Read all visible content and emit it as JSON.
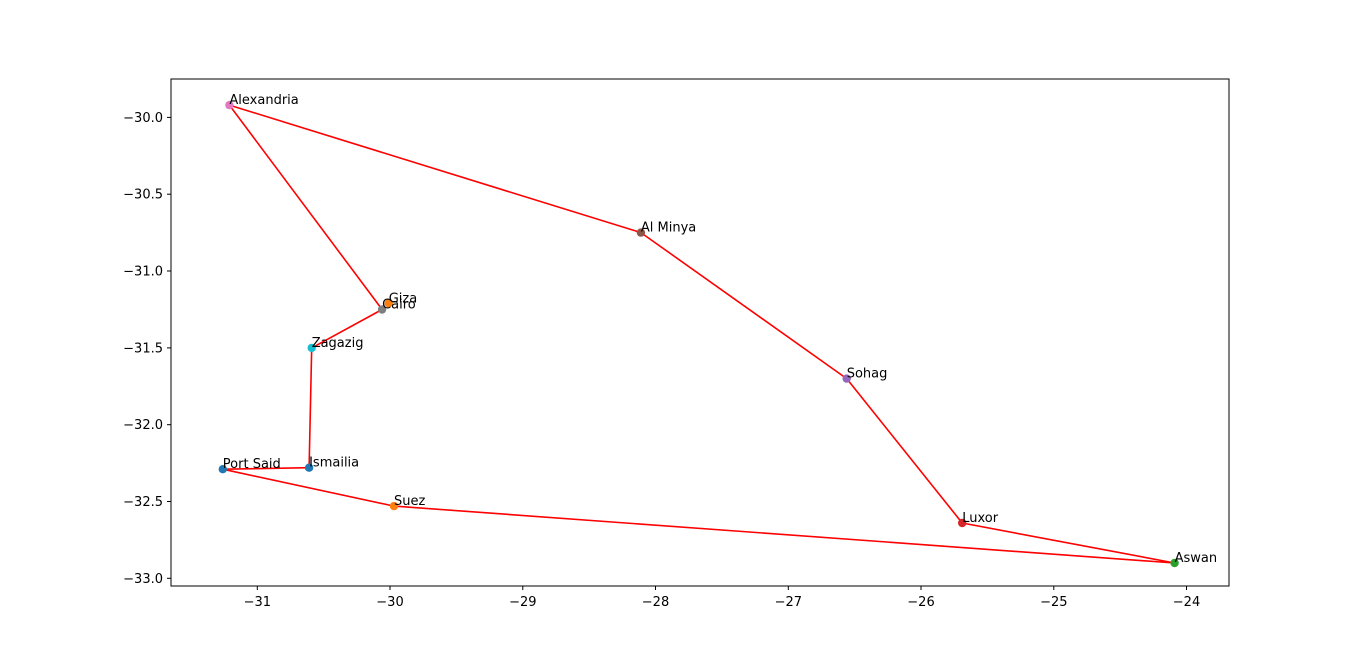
{
  "chart_data": {
    "type": "scatter",
    "title": "",
    "xlabel": "",
    "ylabel": "",
    "xlim": [
      -31.65,
      -23.68
    ],
    "ylim": [
      -33.05,
      -29.75
    ],
    "xticks": [
      -31,
      -30,
      -29,
      -28,
      -27,
      -26,
      -25,
      -24
    ],
    "yticks": [
      -30.0,
      -30.5,
      -31.0,
      -31.5,
      -32.0,
      -32.5,
      -33.0
    ],
    "xtick_labels": [
      "−31",
      "−30",
      "−29",
      "−28",
      "−27",
      "−26",
      "−25",
      "−24"
    ],
    "ytick_labels": [
      "−30.0",
      "−30.5",
      "−31.0",
      "−31.5",
      "−32.0",
      "−32.5",
      "−33.0"
    ],
    "grid": false,
    "route_color": "#ff0000",
    "points": [
      {
        "label": "Cairo",
        "x": -30.06,
        "y": -31.25,
        "color": "#7f7f7f"
      },
      {
        "label": "Alexandria",
        "x": -31.21,
        "y": -29.92,
        "color": "#e377c2"
      },
      {
        "label": "Al Minya",
        "x": -28.11,
        "y": -30.75,
        "color": "#8c564b"
      },
      {
        "label": "Sohag",
        "x": -26.56,
        "y": -31.7,
        "color": "#9467bd"
      },
      {
        "label": "Luxor",
        "x": -25.69,
        "y": -32.64,
        "color": "#d62728"
      },
      {
        "label": "Aswan",
        "x": -24.09,
        "y": -32.9,
        "color": "#2ca02c"
      },
      {
        "label": "Suez",
        "x": -29.97,
        "y": -32.53,
        "color": "#ff7f0e"
      },
      {
        "label": "Port Said",
        "x": -31.26,
        "y": -32.29,
        "color": "#1f77b4"
      },
      {
        "label": "Ismailia",
        "x": -30.61,
        "y": -32.28,
        "color": "#1f77b4"
      },
      {
        "label": "Zagazig",
        "x": -30.59,
        "y": -31.5,
        "color": "#17becf"
      },
      {
        "label": "Giza",
        "x": -30.01,
        "y": -31.21,
        "color": "#ff7f0e"
      }
    ],
    "route": [
      "Cairo",
      "Alexandria",
      "Al Minya",
      "Sohag",
      "Luxor",
      "Aswan",
      "Suez",
      "Port Said",
      "Ismailia",
      "Zagazig",
      "Cairo"
    ]
  }
}
